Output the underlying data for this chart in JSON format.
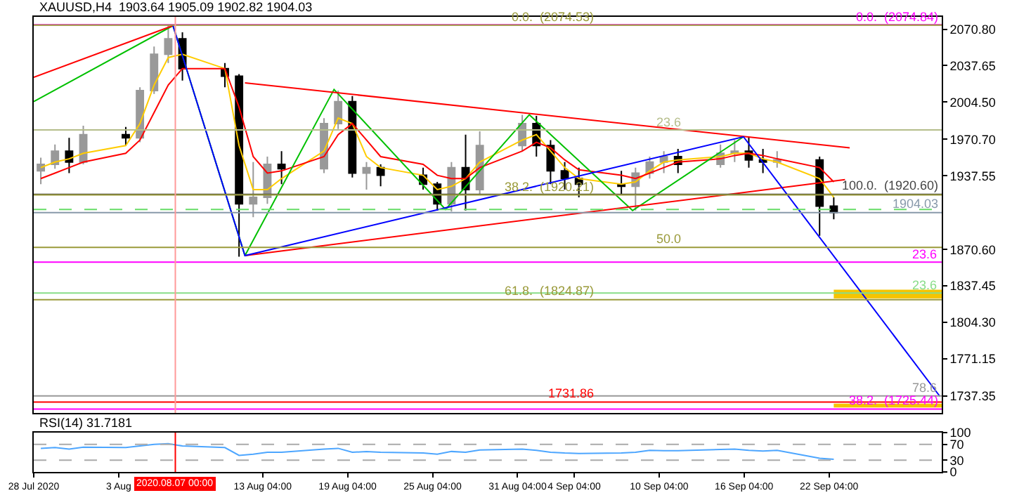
{
  "chart_data": [
    {
      "type": "candlestick",
      "title": "XAUUSD,H4  1903.64 1905.09 1902.82 1904.03",
      "colors": [
        "#999999",
        "#999999",
        "#000000",
        "#999999",
        "#000000",
        "#999999",
        "#999999",
        "#999999",
        "#000000",
        "#000000",
        "#000000",
        "#999999",
        "#999999",
        "#000000",
        "#999999",
        "#999999",
        "#000000",
        "#999999",
        "#000000",
        "#000000",
        "#000000",
        "#999999",
        "#000000",
        "#999999",
        "#999999",
        "#000000",
        "#000000",
        "#000000",
        "#000000",
        "#000000",
        "#999999",
        "#999999",
        "#999999",
        "#000000",
        "#999999",
        "#999999",
        "#000000",
        "#000000",
        "#999999",
        "#000000",
        "#000000"
      ],
      "x": [
        "2020-07-28T12:00",
        "2020-07-29T12:00",
        "2020-07-30T12:00",
        "2020-07-31T12:00",
        "2020-08-03T12:00",
        "2020-08-04T12:00",
        "2020-08-05T12:00",
        "2020-08-06T12:00",
        "2020-08-07T12:00",
        "2020-08-10T12:00",
        "2020-08-11T12:00",
        "2020-08-12T12:00",
        "2020-08-13T12:00",
        "2020-08-14T12:00",
        "2020-08-17T12:00",
        "2020-08-18T12:00",
        "2020-08-19T12:00",
        "2020-08-20T12:00",
        "2020-08-21T12:00",
        "2020-08-24T12:00",
        "2020-08-25T12:00",
        "2020-08-26T12:00",
        "2020-08-27T12:00",
        "2020-08-28T12:00",
        "2020-08-31T12:00",
        "2020-09-01T12:00",
        "2020-09-02T12:00",
        "2020-09-03T12:00",
        "2020-09-04T12:00",
        "2020-09-07T12:00",
        "2020-09-08T12:00",
        "2020-09-09T12:00",
        "2020-09-10T12:00",
        "2020-09-11T12:00",
        "2020-09-14T12:00",
        "2020-09-15T12:00",
        "2020-09-16T12:00",
        "2020-09-17T12:00",
        "2020-09-18T12:00",
        "2020-09-21T12:00",
        "2020-09-22T12:00"
      ],
      "ohlc": [
        [
          1942,
          1954,
          1930,
          1948
        ],
        [
          1948,
          1966,
          1944,
          1960
        ],
        [
          1960,
          1972,
          1940,
          1950
        ],
        [
          1950,
          1983,
          1948,
          1975
        ],
        [
          1975,
          1982,
          1965,
          1972
        ],
        [
          1972,
          2018,
          1968,
          2015
        ],
        [
          2015,
          2055,
          2012,
          2048
        ],
        [
          2048,
          2075,
          2040,
          2062
        ],
        [
          2062,
          2068,
          2024,
          2035
        ],
        [
          2035,
          2040,
          2018,
          2028
        ],
        [
          2028,
          2030,
          1864,
          1912
        ],
        [
          1912,
          1950,
          1900,
          1918
        ],
        [
          1918,
          1955,
          1912,
          1948
        ],
        [
          1948,
          1960,
          1930,
          1944
        ],
        [
          1944,
          1990,
          1940,
          1985
        ],
        [
          1985,
          2015,
          1980,
          2005
        ],
        [
          2005,
          2010,
          1936,
          1940
        ],
        [
          1940,
          1950,
          1925,
          1945
        ],
        [
          1945,
          1948,
          1928,
          1938
        ],
        [
          1938,
          1945,
          1925,
          1930
        ],
        [
          1930,
          1932,
          1906,
          1912
        ],
        [
          1912,
          1950,
          1905,
          1945
        ],
        [
          1945,
          1975,
          1906,
          1925
        ],
        [
          1925,
          1978,
          1920,
          1965
        ],
        [
          1965,
          1993,
          1960,
          1985
        ],
        [
          1985,
          1992,
          1955,
          1965
        ],
        [
          1965,
          1970,
          1930,
          1942
        ],
        [
          1942,
          1950,
          1925,
          1935
        ],
        [
          1935,
          1945,
          1918,
          1930
        ],
        [
          1930,
          1942,
          1920,
          1928
        ],
        [
          1928,
          1945,
          1906,
          1940
        ],
        [
          1940,
          1955,
          1935,
          1950
        ],
        [
          1950,
          1960,
          1940,
          1955
        ],
        [
          1955,
          1962,
          1940,
          1948
        ],
        [
          1948,
          1966,
          1945,
          1958
        ],
        [
          1958,
          1970,
          1950,
          1960
        ],
        [
          1960,
          1973,
          1945,
          1952
        ],
        [
          1952,
          1962,
          1940,
          1950
        ],
        [
          1950,
          1960,
          1945,
          1952
        ],
        [
          1952,
          1955,
          1883,
          1910
        ],
        [
          1910,
          1918,
          1898,
          1904
        ]
      ],
      "series": [
        {
          "type": "line",
          "color": "#ffcc00",
          "values": [
            1945,
            1950,
            1953,
            1958,
            1965,
            1985,
            2020,
            2045,
            2048,
            2035,
            1965,
            1925,
            1925,
            1935,
            1960,
            1990,
            1985,
            1955,
            1945,
            1938,
            1925,
            1928,
            1935,
            1950,
            1970,
            1975,
            1960,
            1945,
            1935,
            1930,
            1932,
            1942,
            1950,
            1952,
            1955,
            1958,
            1958,
            1953,
            1950,
            1935,
            1918
          ]
        },
        {
          "type": "line",
          "color": "#ff0000",
          "values": [
            1935,
            1940,
            1945,
            1950,
            1958,
            1970,
            1995,
            2020,
            2035,
            2035,
            2000,
            1955,
            1940,
            1942,
            1955,
            1975,
            1985,
            1970,
            1955,
            1948,
            1938,
            1935,
            1935,
            1945,
            1960,
            1968,
            1963,
            1952,
            1943,
            1938,
            1935,
            1940,
            1945,
            1950,
            1953,
            1956,
            1958,
            1956,
            1953,
            1945,
            1932
          ]
        },
        {
          "type": "line",
          "color": "#00c000",
          "x": [
            "2020-07-28T00:00",
            "2020-08-06T20:00",
            "2020-08-11T22:00",
            "2020-08-18T05:00",
            "2020-08-26T02:00",
            "2020-09-01T00:00",
            "2020-09-08T07:00",
            "2020-09-16T03:00"
          ],
          "values": [
            2005,
            2074,
            1865,
            2016,
            1907,
            1993,
            1906,
            1973
          ]
        },
        {
          "type": "line",
          "color": "#ff0000",
          "x": [
            "2020-07-28T00:00",
            "2020-08-06T20:00"
          ],
          "values": [
            2027,
            2074
          ]
        },
        {
          "type": "line",
          "color": "#ff0000",
          "x": [
            "2020-08-11T22:00",
            "2020-09-23T15:00"
          ],
          "values": [
            2022,
            1963
          ]
        },
        {
          "type": "line",
          "color": "#ff0000",
          "x": [
            "2020-08-11T22:00",
            "2020-09-23T07:00"
          ],
          "values": [
            1865,
            1934
          ]
        },
        {
          "type": "line",
          "color": "#0000ff",
          "x": [
            "2020-08-06T20:00",
            "2020-08-11T22:00",
            "2020-09-16T03:00",
            "2020-09-30T00:00"
          ],
          "values": [
            2074,
            1865,
            1973,
            1737
          ]
        }
      ],
      "xlim": [
        "2020-07-28T00:00",
        "2020-09-30T03:00"
      ],
      "ylim": [
        1722,
        2082
      ],
      "yticks": [
        {
          "value": 2070.8,
          "label": "2070.80"
        },
        {
          "value": 2037.65,
          "label": "2037.65"
        },
        {
          "value": 2004.5,
          "label": "2004.50"
        },
        {
          "value": 1970.7,
          "label": "1970.70"
        },
        {
          "value": 1937.55,
          "label": "1937.55"
        },
        {
          "value": 1870.6,
          "label": "1870.60"
        },
        {
          "value": 1837.45,
          "label": "1837.45"
        },
        {
          "value": 1804.3,
          "label": "1804.30"
        },
        {
          "value": 1771.15,
          "label": "1771.15"
        },
        {
          "value": 1737.35,
          "label": "1737.35"
        }
      ],
      "ref_lines": [
        {
          "axis": "y",
          "value": 2074.84,
          "label": "0.0.  (2074.84)",
          "color": "#ff00ff"
        },
        {
          "axis": "y",
          "value": 2074.53,
          "label": "0.0.  (2074.53)",
          "color": "#9a9a3a"
        },
        {
          "axis": "y",
          "value": 1979.2,
          "color": "#b5bd8a"
        },
        {
          "axis": "y",
          "value": 1920.6,
          "label": "100.0.  (1920.60)",
          "color": "#444444"
        },
        {
          "axis": "y",
          "value": 1920.21,
          "label": "38.2.  (1920.21)",
          "color": "#9a9a3a"
        },
        {
          "axis": "y",
          "value": 1907,
          "color": "#66dd66",
          "line_style": "dashed"
        },
        {
          "axis": "y",
          "value": 1904.03,
          "label": "1904.03",
          "color": "#8899aa"
        },
        {
          "axis": "y",
          "value": 1872.5,
          "color": "#9a9a3a"
        },
        {
          "axis": "y",
          "value": 1859,
          "color": "#ff00ff"
        },
        {
          "axis": "y",
          "value": 1831,
          "color": "#88dd88"
        },
        {
          "axis": "y",
          "value": 1824.87,
          "label": "61.8.  (1824.87)",
          "color": "#9a9a3a"
        },
        {
          "axis": "y",
          "value": 1737.5,
          "color": "#999999"
        },
        {
          "axis": "y",
          "value": 1731.86,
          "label": "1731.86",
          "color": "#ff0000"
        },
        {
          "axis": "y",
          "value": 1725.44,
          "label": "38.2.  (1725.44)",
          "color": "#ff00ff"
        },
        {
          "axis": "x",
          "value": "2020-08-07T00:00",
          "color": "#ff9999"
        }
      ],
      "bands": [
        {
          "axis": "y",
          "from": 1826,
          "to": 1834,
          "color": "#f5c400"
        },
        {
          "axis": "y",
          "from": 1727,
          "to": 1730.5,
          "color": "#f5c400"
        }
      ],
      "annotations": [
        {
          "text": "23.6",
          "x": "2020-09-12T00:00",
          "y": 1979.2
        },
        {
          "text": "50.0",
          "x": "2020-09-12T00:00",
          "y": 1872.5
        },
        {
          "text": "23.6",
          "x": "2020-09-30T00:00",
          "y": 1859
        },
        {
          "text": "23.6",
          "x": "2020-09-30T00:00",
          "y": 1831
        },
        {
          "text": "78.6",
          "x": "2020-09-30T00:00",
          "y": 1737.5
        }
      ],
      "tick_labels": "y"
    },
    {
      "type": "line",
      "title": "RSI(14) 31.7181",
      "x": [
        "2020-07-28T12:00",
        "2020-07-29T12:00",
        "2020-07-30T12:00",
        "2020-07-31T12:00",
        "2020-08-03T12:00",
        "2020-08-04T12:00",
        "2020-08-05T12:00",
        "2020-08-06T12:00",
        "2020-08-07T12:00",
        "2020-08-10T12:00",
        "2020-08-11T12:00",
        "2020-08-12T12:00",
        "2020-08-13T12:00",
        "2020-08-14T12:00",
        "2020-08-17T12:00",
        "2020-08-18T12:00",
        "2020-08-19T12:00",
        "2020-08-20T12:00",
        "2020-08-21T12:00",
        "2020-08-24T12:00",
        "2020-08-25T12:00",
        "2020-08-26T12:00",
        "2020-08-27T12:00",
        "2020-08-28T12:00",
        "2020-08-31T12:00",
        "2020-09-01T12:00",
        "2020-09-02T12:00",
        "2020-09-03T12:00",
        "2020-09-04T12:00",
        "2020-09-07T12:00",
        "2020-09-08T12:00",
        "2020-09-09T12:00",
        "2020-09-10T12:00",
        "2020-09-11T12:00",
        "2020-09-14T12:00",
        "2020-09-15T12:00",
        "2020-09-16T12:00",
        "2020-09-17T12:00",
        "2020-09-18T12:00",
        "2020-09-21T12:00",
        "2020-09-22T12:00"
      ],
      "series": [
        {
          "color": "#4da6ff",
          "values": [
            60,
            62,
            58,
            63,
            62,
            66,
            70,
            72,
            66,
            62,
            42,
            45,
            50,
            50,
            58,
            60,
            50,
            52,
            50,
            48,
            45,
            52,
            50,
            56,
            58,
            55,
            50,
            48,
            47,
            48,
            50,
            55,
            54,
            54,
            57,
            58,
            55,
            53,
            55,
            35,
            32
          ]
        }
      ],
      "xlim": [
        "2020-07-28T00:00",
        "2020-09-30T03:00"
      ],
      "ylim": [
        0,
        100
      ],
      "yticks": [
        0,
        30,
        70,
        100
      ],
      "xticks": [
        {
          "value": "2020-07-28T00:00",
          "label": "28 Jul 2020"
        },
        {
          "value": "2020-08-03T00:00",
          "label": "3 Aug"
        },
        {
          "value": "2020-08-13T04:00",
          "label": "13 Aug 04:00"
        },
        {
          "value": "2020-08-19T04:00",
          "label": "19 Aug 04:00"
        },
        {
          "value": "2020-08-25T04:00",
          "label": "25 Aug 04:00"
        },
        {
          "value": "2020-08-31T04:00",
          "label": "31 Aug 04:00"
        },
        {
          "value": "2020-09-04T04:00",
          "label": "4 Sep 04:00"
        },
        {
          "value": "2020-09-10T04:00",
          "label": "10 Sep 04:00"
        },
        {
          "value": "2020-09-16T04:00",
          "label": "16 Sep 04:00"
        },
        {
          "value": "2020-09-22T04:00",
          "label": "22 Sep 04:00"
        }
      ],
      "ref_lines": [
        {
          "axis": "y",
          "value": 70,
          "color": "#aaaaaa",
          "line_style": "dashed"
        },
        {
          "axis": "y",
          "value": 30,
          "color": "#aaaaaa",
          "line_style": "dashed"
        },
        {
          "axis": "x",
          "value": "2020-08-07T00:00",
          "label": "2020.08.07 00:00",
          "color": "#ff0000"
        }
      ]
    }
  ]
}
